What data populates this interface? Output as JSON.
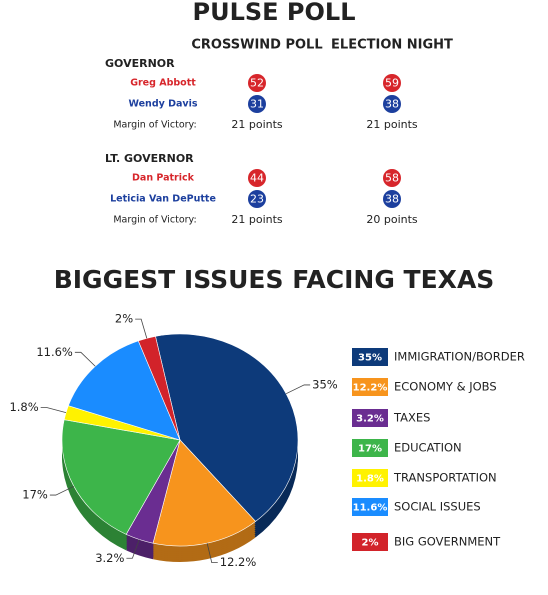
{
  "poll": {
    "title": "PULSE POLL",
    "columns": [
      "CROSSWIND POLL",
      "ELECTION NIGHT"
    ],
    "sections": [
      {
        "heading": "GOVERNOR",
        "candidates": [
          {
            "name": "Greg Abbott",
            "color": "#d7262b",
            "values": [
              52,
              59
            ]
          },
          {
            "name": "Wendy Davis",
            "color": "#1c3f9e",
            "values": [
              31,
              38
            ]
          }
        ],
        "margin_label": "Margin of Victory:",
        "margins": [
          "21 points",
          "21 points"
        ]
      },
      {
        "heading": "LT. GOVERNOR",
        "candidates": [
          {
            "name": "Dan Patrick",
            "color": "#d7262b",
            "values": [
              44,
              58
            ]
          },
          {
            "name": "Leticia Van DePutte",
            "color": "#1c3f9e",
            "values": [
              23,
              38
            ]
          }
        ],
        "margin_label": "Margin of Victory:",
        "margins": [
          "21 points",
          "20 points"
        ]
      }
    ]
  },
  "chart_data": {
    "type": "pie",
    "title": "BIGGEST ISSUES FACING TEXAS",
    "categories": [
      "IMMIGRATION/BORDER",
      "ECONOMY & JOBS",
      "TAXES",
      "EDUCATION",
      "TRANSPORTATION",
      "SOCIAL ISSUES",
      "BIG GOVERNMENT"
    ],
    "values": [
      35,
      12.2,
      3.2,
      17,
      1.8,
      11.6,
      2
    ],
    "value_labels": [
      "35%",
      "12.2%",
      "3.2%",
      "17%",
      "1.8%",
      "11.6%",
      "2%"
    ],
    "colors": [
      "#0d3a7a",
      "#f7941d",
      "#6a2d91",
      "#3db54a",
      "#fff200",
      "#1a8cff",
      "#d2232a"
    ]
  }
}
